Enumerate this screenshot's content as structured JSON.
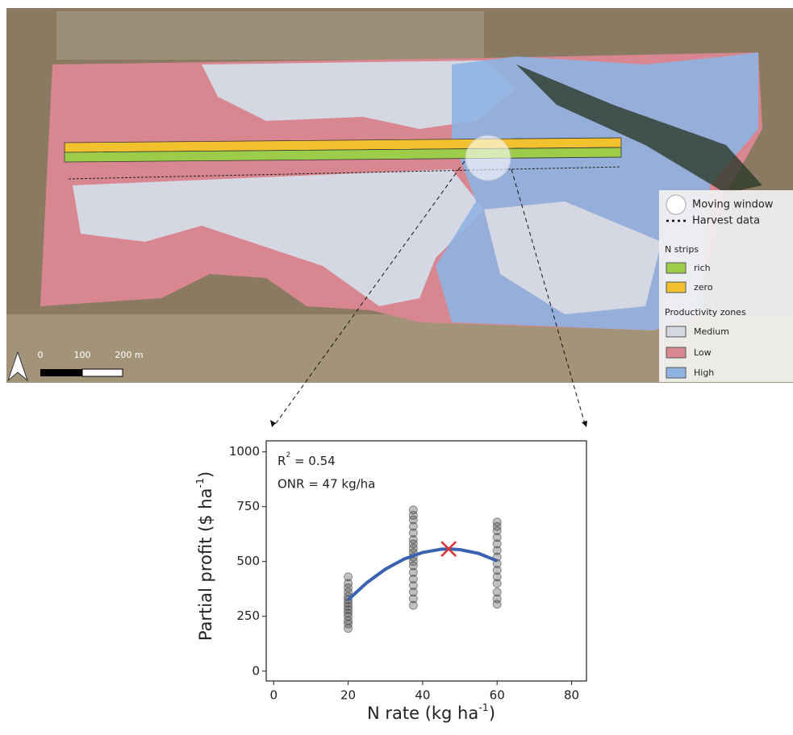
{
  "map": {
    "legend": {
      "moving_window": "Moving window",
      "harvest_data": "Harvest data",
      "n_strips": "N strips",
      "rich": "rich",
      "zero": "zero",
      "zones_title": "Productivity zones",
      "medium": "Medium",
      "low": "Low",
      "high": "High"
    },
    "colors": {
      "rich": "#9ccc4a",
      "zero": "#f2c12e",
      "medium": "#d5d8e3",
      "low": "#d88690",
      "high": "#8fb4e2"
    },
    "scale": {
      "zero": "0",
      "mid": "100",
      "end": "200 m"
    }
  },
  "chart_data": {
    "type": "scatter",
    "ylabel": {
      "text": "Partial profit ($ ha",
      "sup": "-1",
      "end": ")"
    },
    "xlabel": {
      "text": "N rate (kg ha",
      "sup": "-1",
      "end": ")"
    },
    "annotations": {
      "r2": {
        "text": "R",
        "sup": "2",
        "end": " = 0.54"
      },
      "onr": "ONR = 47 kg/ha"
    },
    "xlim": [
      -2,
      84
    ],
    "ylim": [
      -45,
      1050
    ],
    "xticks": [
      0,
      20,
      40,
      60,
      80
    ],
    "yticks": [
      0,
      250,
      500,
      750,
      1000
    ],
    "points": {
      "color": "#333333",
      "x": [
        20,
        20,
        20,
        20,
        20,
        20,
        20,
        20,
        20,
        20,
        20,
        20,
        20,
        20,
        37.5,
        37.5,
        37.5,
        37.5,
        37.5,
        37.5,
        37.5,
        37.5,
        37.5,
        37.5,
        37.5,
        37.5,
        37.5,
        37.5,
        37.5,
        37.5,
        37.5,
        37.5,
        60,
        60,
        60,
        60,
        60,
        60,
        60,
        60,
        60,
        60,
        60,
        60,
        60,
        60
      ],
      "values": [
        195,
        215,
        230,
        250,
        265,
        280,
        295,
        310,
        325,
        340,
        360,
        380,
        400,
        430,
        300,
        330,
        360,
        390,
        420,
        450,
        480,
        500,
        520,
        540,
        560,
        580,
        600,
        630,
        660,
        690,
        710,
        735,
        305,
        330,
        360,
        400,
        430,
        460,
        490,
        520,
        550,
        580,
        610,
        640,
        660,
        680
      ]
    },
    "curve": {
      "color": "#3a62b0",
      "x": [
        20,
        25,
        30,
        35,
        40,
        45,
        47,
        50,
        55,
        60
      ],
      "values": [
        325,
        403,
        465,
        511,
        541,
        556,
        557,
        554,
        537,
        503
      ]
    },
    "optimum": {
      "color": "#e03030",
      "x": 47,
      "value": 557
    }
  }
}
